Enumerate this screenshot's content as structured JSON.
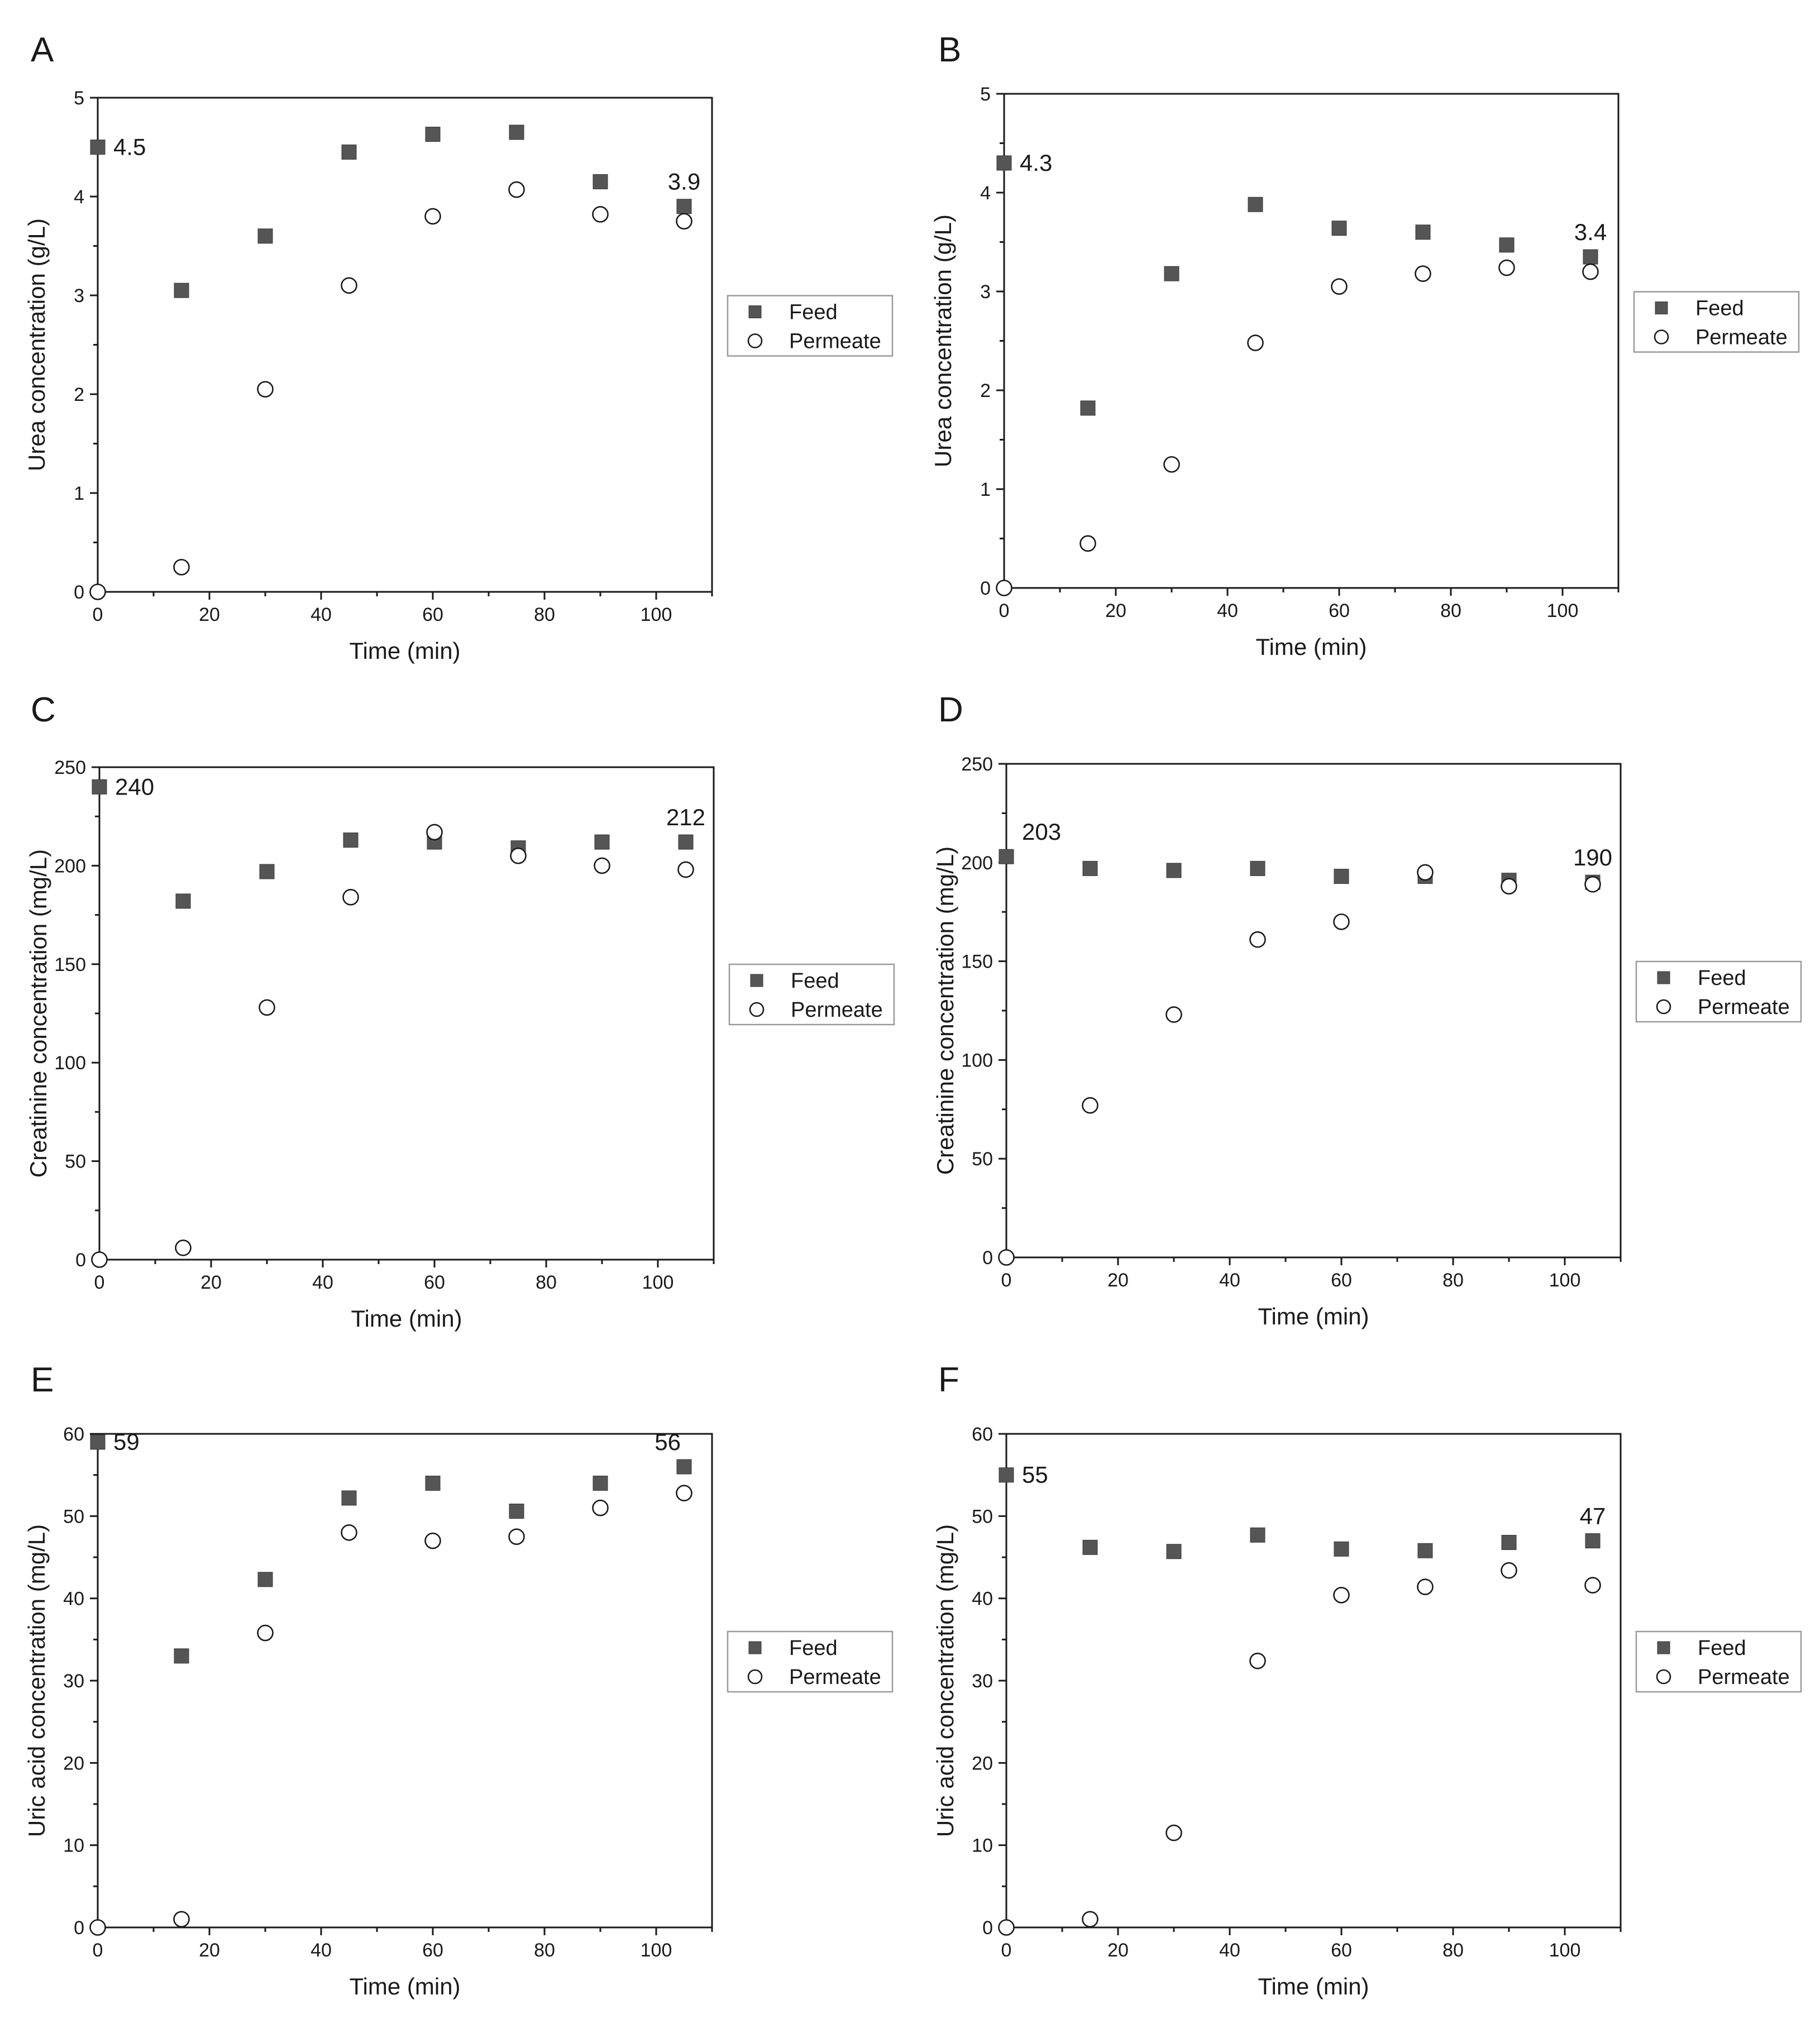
{
  "legend": {
    "feed": "Feed",
    "permeate": "Permeate"
  },
  "colors": {
    "feed": "#555555",
    "permeate_fill": "#ffffff",
    "axis": "#1a1a1a"
  },
  "chart_data": [
    {
      "panel": "A",
      "type": "scatter",
      "xlabel": "Time (min)",
      "ylabel": "Urea concentration (g/L)",
      "xlim": [
        0,
        110
      ],
      "ylim": [
        0,
        5
      ],
      "xticks": [
        0,
        20,
        40,
        60,
        80,
        100
      ],
      "yticks": [
        0,
        1,
        2,
        3,
        4,
        5
      ],
      "x": [
        0,
        15,
        30,
        45,
        60,
        75,
        90,
        105
      ],
      "series": [
        {
          "name": "Feed",
          "values": [
            4.5,
            3.05,
            3.6,
            4.45,
            4.63,
            4.65,
            4.15,
            3.9
          ]
        },
        {
          "name": "Permeate",
          "values": [
            0,
            0.25,
            2.05,
            3.1,
            3.8,
            4.07,
            3.82,
            3.75
          ]
        }
      ],
      "annotations": [
        {
          "text": "4.5",
          "x": 0,
          "y": 4.5,
          "pos": "right"
        },
        {
          "text": "3.9",
          "x": 105,
          "y": 3.9,
          "pos": "above"
        }
      ]
    },
    {
      "panel": "B",
      "type": "scatter",
      "xlabel": "Time (min)",
      "ylabel": "Urea concentration (g/L)",
      "xlim": [
        0,
        110
      ],
      "ylim": [
        0,
        5
      ],
      "xticks": [
        0,
        20,
        40,
        60,
        80,
        100
      ],
      "yticks": [
        0,
        1,
        2,
        3,
        4,
        5
      ],
      "x": [
        0,
        15,
        30,
        45,
        60,
        75,
        90,
        105
      ],
      "series": [
        {
          "name": "Feed",
          "values": [
            4.3,
            1.82,
            3.18,
            3.88,
            3.64,
            3.6,
            3.47,
            3.35
          ]
        },
        {
          "name": "Permeate",
          "values": [
            0,
            0.45,
            1.25,
            2.48,
            3.05,
            3.18,
            3.24,
            3.2
          ]
        }
      ],
      "annotations": [
        {
          "text": "4.3",
          "x": 0,
          "y": 4.3,
          "pos": "right"
        },
        {
          "text": "3.4",
          "x": 105,
          "y": 3.35,
          "pos": "above"
        }
      ]
    },
    {
      "panel": "C",
      "type": "scatter",
      "xlabel": "Time (min)",
      "ylabel": "Creatinine concentration (mg/L)",
      "xlim": [
        0,
        110
      ],
      "ylim": [
        0,
        250
      ],
      "xticks": [
        0,
        20,
        40,
        60,
        80,
        100
      ],
      "yticks": [
        0,
        50,
        100,
        150,
        200,
        250
      ],
      "x": [
        0,
        15,
        30,
        45,
        60,
        75,
        90,
        105
      ],
      "series": [
        {
          "name": "Feed",
          "values": [
            240,
            182,
            197,
            213,
            212,
            209,
            212,
            212
          ]
        },
        {
          "name": "Permeate",
          "values": [
            0,
            6,
            128,
            184,
            217,
            205,
            200,
            198
          ]
        }
      ],
      "annotations": [
        {
          "text": "240",
          "x": 0,
          "y": 240,
          "pos": "right"
        },
        {
          "text": "212",
          "x": 105,
          "y": 212,
          "pos": "above"
        }
      ]
    },
    {
      "panel": "D",
      "type": "scatter",
      "xlabel": "Time (min)",
      "ylabel": "Creatinine concentration (mg/L)",
      "xlim": [
        0,
        110
      ],
      "ylim": [
        0,
        250
      ],
      "xticks": [
        0,
        20,
        40,
        60,
        80,
        100
      ],
      "yticks": [
        0,
        50,
        100,
        150,
        200,
        250
      ],
      "x": [
        0,
        15,
        30,
        45,
        60,
        75,
        90,
        105
      ],
      "series": [
        {
          "name": "Feed",
          "values": [
            203,
            197,
            196,
            197,
            193,
            193,
            191,
            190
          ]
        },
        {
          "name": "Permeate",
          "values": [
            0,
            77,
            123,
            161,
            170,
            195,
            188,
            189
          ]
        }
      ],
      "annotations": [
        {
          "text": "203",
          "x": 0,
          "y": 203,
          "pos": "above-right"
        },
        {
          "text": "190",
          "x": 105,
          "y": 190,
          "pos": "above"
        }
      ]
    },
    {
      "panel": "E",
      "type": "scatter",
      "xlabel": "Time (min)",
      "ylabel": "Uric acid concentration (mg/L)",
      "xlim": [
        0,
        110
      ],
      "ylim": [
        0,
        60
      ],
      "xticks": [
        0,
        20,
        40,
        60,
        80,
        100
      ],
      "yticks": [
        0,
        10,
        20,
        30,
        40,
        50,
        60
      ],
      "x": [
        0,
        15,
        30,
        45,
        60,
        75,
        90,
        105
      ],
      "series": [
        {
          "name": "Feed",
          "values": [
            59,
            33,
            42.3,
            52.2,
            54,
            50.6,
            54,
            56
          ]
        },
        {
          "name": "Permeate",
          "values": [
            0,
            1,
            35.8,
            48,
            47,
            47.5,
            51,
            52.8
          ]
        }
      ],
      "annotations": [
        {
          "text": "59",
          "x": 0,
          "y": 59,
          "pos": "right"
        },
        {
          "text": "56",
          "x": 105,
          "y": 56,
          "pos": "above-left"
        }
      ]
    },
    {
      "panel": "F",
      "type": "scatter",
      "xlabel": "Time (min)",
      "ylabel": "Uric acid concentration (mg/L)",
      "xlim": [
        0,
        110
      ],
      "ylim": [
        0,
        60
      ],
      "xticks": [
        0,
        20,
        40,
        60,
        80,
        100
      ],
      "yticks": [
        0,
        10,
        20,
        30,
        40,
        50,
        60
      ],
      "x": [
        0,
        15,
        30,
        45,
        60,
        75,
        90,
        105
      ],
      "series": [
        {
          "name": "Feed",
          "values": [
            55,
            46.2,
            45.7,
            47.7,
            46,
            45.8,
            46.8,
            47
          ]
        },
        {
          "name": "Permeate",
          "values": [
            0,
            1,
            11.5,
            32.4,
            40.4,
            41.4,
            43.4,
            41.6
          ]
        }
      ],
      "annotations": [
        {
          "text": "55",
          "x": 0,
          "y": 55,
          "pos": "right"
        },
        {
          "text": "47",
          "x": 105,
          "y": 47,
          "pos": "above"
        }
      ]
    }
  ]
}
